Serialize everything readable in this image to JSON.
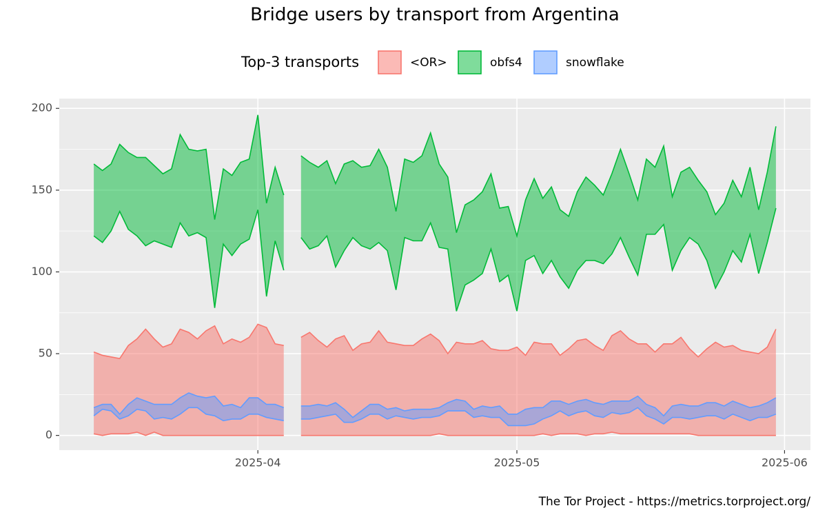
{
  "chart_data": {
    "type": "ribbon",
    "title": "Bridge users by transport from Argentina",
    "legend_title": "Top-3 transports",
    "legend_position": "top",
    "caption": "The Tor Project - https://metrics.torproject.org/",
    "grid": true,
    "x": [
      "2025-03-13",
      "2025-03-14",
      "2025-03-15",
      "2025-03-16",
      "2025-03-17",
      "2025-03-18",
      "2025-03-19",
      "2025-03-20",
      "2025-03-21",
      "2025-03-22",
      "2025-03-23",
      "2025-03-24",
      "2025-03-25",
      "2025-03-26",
      "2025-03-27",
      "2025-03-28",
      "2025-03-29",
      "2025-03-30",
      "2025-03-31",
      "2025-04-01",
      "2025-04-02",
      "2025-04-03",
      "2025-04-04",
      "2025-04-05",
      "2025-04-06",
      "2025-04-07",
      "2025-04-08",
      "2025-04-09",
      "2025-04-10",
      "2025-04-11",
      "2025-04-12",
      "2025-04-13",
      "2025-04-14",
      "2025-04-15",
      "2025-04-16",
      "2025-04-17",
      "2025-04-18",
      "2025-04-19",
      "2025-04-20",
      "2025-04-21",
      "2025-04-22",
      "2025-04-23",
      "2025-04-24",
      "2025-04-25",
      "2025-04-26",
      "2025-04-27",
      "2025-04-28",
      "2025-04-29",
      "2025-04-30",
      "2025-05-01",
      "2025-05-02",
      "2025-05-03",
      "2025-05-04",
      "2025-05-05",
      "2025-05-06",
      "2025-05-07",
      "2025-05-08",
      "2025-05-09",
      "2025-05-10",
      "2025-05-11",
      "2025-05-12",
      "2025-05-13",
      "2025-05-14",
      "2025-05-15",
      "2025-05-16",
      "2025-05-17",
      "2025-05-18",
      "2025-05-19",
      "2025-05-20",
      "2025-05-21",
      "2025-05-22",
      "2025-05-23",
      "2025-05-24",
      "2025-05-25",
      "2025-05-26",
      "2025-05-27",
      "2025-05-28",
      "2025-05-29",
      "2025-05-30",
      "2025-05-31"
    ],
    "series": [
      {
        "name": "<OR>",
        "color": "#f8766d",
        "lower": [
          1,
          0,
          1,
          1,
          1,
          2,
          0,
          2,
          0,
          0,
          0,
          0,
          0,
          0,
          0,
          0,
          0,
          0,
          0,
          0,
          0,
          0,
          0,
          null,
          0,
          0,
          0,
          0,
          0,
          0,
          0,
          0,
          0,
          0,
          0,
          0,
          0,
          0,
          0,
          0,
          1,
          0,
          0,
          0,
          0,
          0,
          0,
          0,
          0,
          0,
          0,
          0,
          1,
          0,
          1,
          1,
          1,
          0,
          1,
          1,
          2,
          1,
          1,
          1,
          1,
          1,
          1,
          1,
          1,
          1,
          0,
          0,
          0,
          0,
          0,
          0,
          0,
          0,
          0,
          0
        ],
        "upper": [
          51,
          49,
          48,
          47,
          55,
          59,
          65,
          59,
          54,
          56,
          65,
          63,
          59,
          64,
          67,
          56,
          59,
          57,
          60,
          68,
          66,
          56,
          55,
          null,
          60,
          63,
          58,
          54,
          59,
          61,
          52,
          56,
          57,
          64,
          57,
          56,
          55,
          55,
          59,
          62,
          58,
          50,
          57,
          56,
          56,
          58,
          53,
          52,
          52,
          54,
          49,
          57,
          56,
          56,
          49,
          53,
          58,
          59,
          55,
          52,
          61,
          64,
          59,
          56,
          56,
          51,
          56,
          56,
          60,
          53,
          48,
          53,
          57,
          54,
          55,
          52,
          51,
          50,
          54,
          65
        ]
      },
      {
        "name": "obfs4",
        "color": "#00ba38",
        "lower": [
          122,
          118,
          125,
          137,
          126,
          122,
          116,
          119,
          117,
          115,
          130,
          122,
          124,
          121,
          78,
          117,
          110,
          117,
          120,
          138,
          85,
          119,
          101,
          null,
          121,
          114,
          116,
          122,
          103,
          113,
          121,
          116,
          114,
          118,
          113,
          89,
          121,
          119,
          119,
          130,
          115,
          114,
          76,
          92,
          95,
          99,
          114,
          94,
          98,
          76,
          107,
          110,
          99,
          107,
          97,
          90,
          101,
          107,
          107,
          105,
          111,
          121,
          109,
          98,
          123,
          123,
          129,
          101,
          113,
          121,
          117,
          107,
          90,
          100,
          113,
          106,
          123,
          99,
          118,
          139
        ],
        "upper": [
          166,
          162,
          166,
          178,
          173,
          170,
          170,
          165,
          160,
          163,
          184,
          175,
          174,
          175,
          132,
          163,
          159,
          167,
          169,
          196,
          142,
          164,
          147,
          null,
          171,
          167,
          164,
          168,
          154,
          166,
          168,
          164,
          165,
          175,
          164,
          137,
          169,
          167,
          171,
          185,
          166,
          158,
          124,
          141,
          144,
          149,
          160,
          139,
          140,
          122,
          144,
          157,
          145,
          152,
          138,
          134,
          149,
          158,
          153,
          147,
          160,
          175,
          160,
          144,
          169,
          164,
          177,
          146,
          161,
          164,
          156,
          149,
          135,
          142,
          156,
          146,
          164,
          138,
          161,
          189
        ]
      },
      {
        "name": "snowflake",
        "color": "#619cff",
        "lower": [
          12,
          16,
          15,
          10,
          12,
          16,
          15,
          10,
          11,
          10,
          13,
          17,
          17,
          13,
          12,
          9,
          10,
          10,
          13,
          13,
          11,
          10,
          9,
          null,
          10,
          10,
          11,
          12,
          13,
          8,
          8,
          10,
          13,
          13,
          10,
          12,
          11,
          10,
          11,
          11,
          12,
          15,
          15,
          15,
          11,
          12,
          11,
          11,
          6,
          6,
          6,
          7,
          10,
          12,
          15,
          12,
          14,
          15,
          12,
          11,
          14,
          13,
          14,
          17,
          12,
          10,
          7,
          11,
          11,
          10,
          11,
          12,
          12,
          10,
          13,
          11,
          9,
          11,
          11,
          13
        ],
        "upper": [
          17,
          19,
          19,
          13,
          19,
          23,
          21,
          19,
          19,
          19,
          23,
          26,
          24,
          23,
          24,
          18,
          19,
          17,
          23,
          23,
          19,
          19,
          17,
          null,
          18,
          18,
          19,
          18,
          20,
          16,
          11,
          15,
          19,
          19,
          16,
          17,
          15,
          16,
          16,
          16,
          17,
          20,
          22,
          21,
          16,
          18,
          17,
          18,
          13,
          13,
          16,
          17,
          17,
          21,
          21,
          19,
          21,
          22,
          20,
          19,
          21,
          21,
          21,
          24,
          19,
          17,
          12,
          18,
          19,
          18,
          18,
          20,
          20,
          18,
          21,
          19,
          17,
          18,
          20,
          23
        ]
      }
    ],
    "xlim": [
      "2025-03-09",
      "2025-06-04"
    ],
    "xticks": [
      {
        "value": "2025-04-01",
        "label": "2025-04"
      },
      {
        "value": "2025-05-01",
        "label": "2025-05"
      },
      {
        "value": "2025-06-01",
        "label": "2025-06"
      }
    ],
    "ylim": [
      -9,
      206
    ],
    "yticks": [
      0,
      50,
      100,
      150,
      200
    ]
  }
}
